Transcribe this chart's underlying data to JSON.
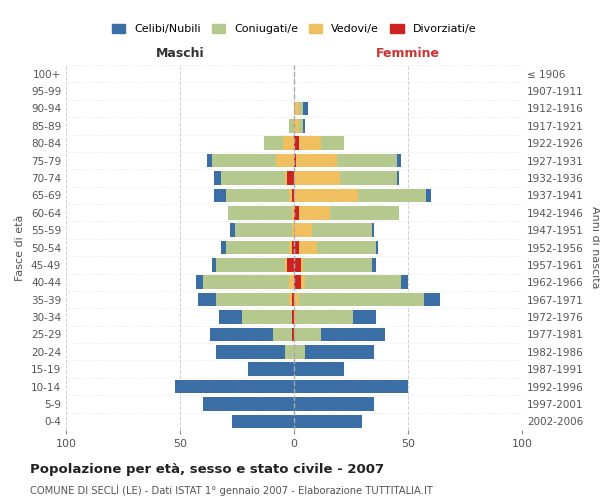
{
  "age_groups": [
    "0-4",
    "5-9",
    "10-14",
    "15-19",
    "20-24",
    "25-29",
    "30-34",
    "35-39",
    "40-44",
    "45-49",
    "50-54",
    "55-59",
    "60-64",
    "65-69",
    "70-74",
    "75-79",
    "80-84",
    "85-89",
    "90-94",
    "95-99",
    "100+"
  ],
  "birth_years": [
    "2002-2006",
    "1997-2001",
    "1992-1996",
    "1987-1991",
    "1982-1986",
    "1977-1981",
    "1972-1976",
    "1967-1971",
    "1962-1966",
    "1957-1961",
    "1952-1956",
    "1947-1951",
    "1942-1946",
    "1937-1941",
    "1932-1936",
    "1927-1931",
    "1922-1926",
    "1917-1921",
    "1912-1916",
    "1907-1911",
    "≤ 1906"
  ],
  "maschi": {
    "celibi": [
      27,
      40,
      52,
      20,
      30,
      28,
      10,
      8,
      3,
      2,
      2,
      2,
      0,
      5,
      3,
      2,
      0,
      0,
      0,
      0,
      0
    ],
    "coniugati": [
      0,
      0,
      0,
      0,
      4,
      8,
      22,
      32,
      38,
      30,
      28,
      25,
      28,
      28,
      28,
      28,
      8,
      2,
      0,
      0,
      0
    ],
    "vedovi": [
      0,
      0,
      0,
      0,
      0,
      0,
      0,
      1,
      2,
      1,
      1,
      1,
      1,
      1,
      1,
      8,
      5,
      0,
      0,
      0,
      0
    ],
    "divorziati": [
      0,
      0,
      0,
      0,
      0,
      1,
      1,
      1,
      0,
      3,
      1,
      0,
      0,
      1,
      3,
      0,
      0,
      0,
      0,
      0,
      0
    ]
  },
  "femmine": {
    "nubili": [
      30,
      35,
      50,
      22,
      30,
      28,
      10,
      7,
      3,
      2,
      1,
      1,
      0,
      2,
      1,
      2,
      0,
      1,
      2,
      0,
      0
    ],
    "coniugate": [
      0,
      0,
      0,
      0,
      5,
      12,
      25,
      55,
      42,
      30,
      26,
      26,
      30,
      30,
      25,
      26,
      10,
      2,
      2,
      0,
      0
    ],
    "vedove": [
      0,
      0,
      0,
      0,
      0,
      0,
      1,
      2,
      2,
      1,
      8,
      8,
      14,
      28,
      20,
      18,
      10,
      2,
      2,
      0,
      0
    ],
    "divorziate": [
      0,
      0,
      0,
      0,
      0,
      0,
      0,
      0,
      3,
      3,
      2,
      0,
      2,
      0,
      0,
      1,
      2,
      0,
      0,
      0,
      0
    ]
  },
  "colors": {
    "celibi_nubili": "#3b6ea5",
    "coniugati_e": "#b5c98e",
    "vedovi_e": "#f0c060",
    "divorziati_e": "#cc2222"
  },
  "xlim": [
    -100,
    100
  ],
  "xticks": [
    -100,
    -50,
    0,
    50,
    100
  ],
  "xticklabels": [
    "100",
    "50",
    "0",
    "50",
    "100"
  ],
  "title": "Popolazione per età, sesso e stato civile - 2007",
  "subtitle": "COMUNE DI SECLÌ (LE) - Dati ISTAT 1° gennaio 2007 - Elaborazione TUTTITALIA.IT",
  "ylabel_left": "Fasce di età",
  "ylabel_right": "Anni di nascita",
  "legend_labels": [
    "Celibi/Nubili",
    "Coniugati/e",
    "Vedovi/e",
    "Divorziati/e"
  ],
  "maschi_label": "Maschi",
  "femmine_label": "Femmine",
  "background_color": "#ffffff",
  "grid_color": "#cccccc"
}
